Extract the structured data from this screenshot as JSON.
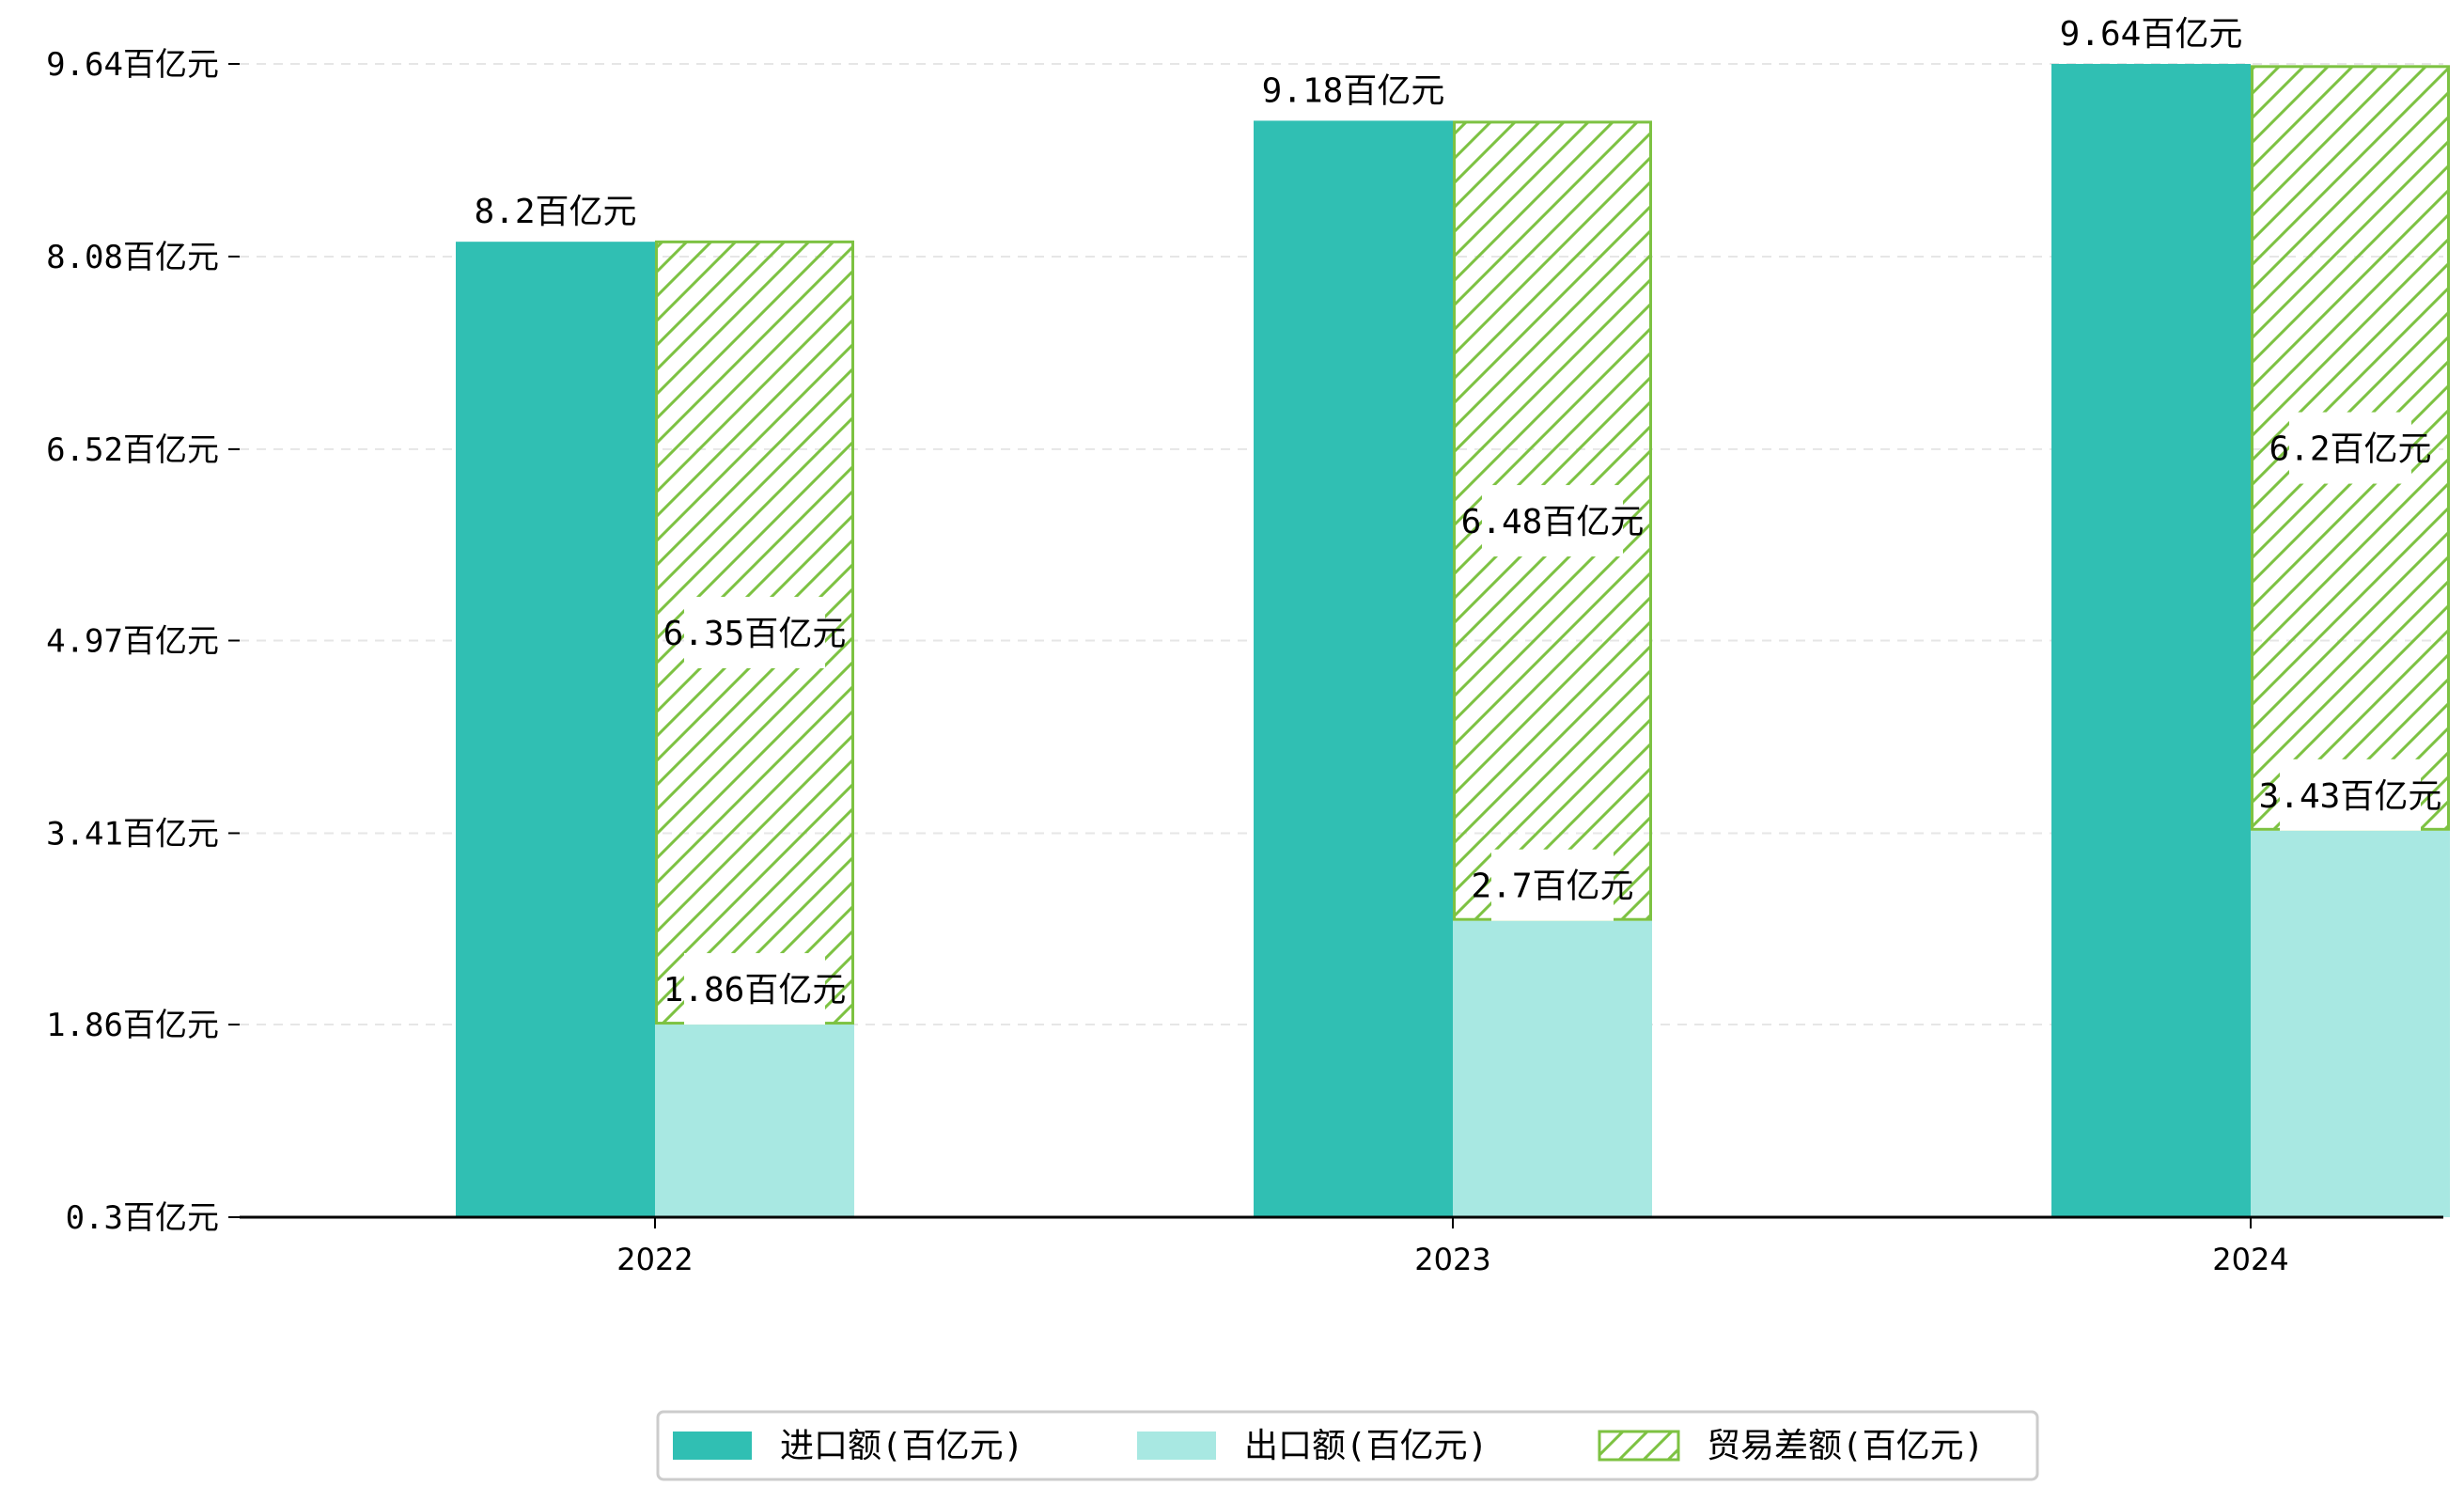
{
  "chart_data": {
    "type": "bar",
    "categories": [
      "2022",
      "2023",
      "2024"
    ],
    "series": [
      {
        "name": "进口额(百亿元)",
        "values": [
          8.2,
          9.18,
          9.64
        ],
        "color": "#30bfb3",
        "labels": [
          "8.2百亿元",
          "9.18百亿元",
          "9.64百亿元"
        ]
      },
      {
        "name": "出口额(百亿元)",
        "values": [
          1.86,
          2.7,
          3.43
        ],
        "color": "#a8e8e2",
        "labels": [
          "1.86百亿元",
          "2.7百亿元",
          "3.43百亿元"
        ]
      },
      {
        "name": "贸易差额(百亿元)",
        "values": [
          6.35,
          6.48,
          6.2
        ],
        "color": "#7dc242",
        "pattern": "hatch",
        "stacked_on": "出口额(百亿元)",
        "labels": [
          "6.35百亿元",
          "6.48百亿元",
          "6.2百亿元"
        ]
      }
    ],
    "y_ticks": [
      0.3,
      1.86,
      3.41,
      4.97,
      6.52,
      8.08,
      9.64
    ],
    "y_tick_labels": [
      "0.3百亿元",
      "1.86百亿元",
      "3.41百亿元",
      "4.97百亿元",
      "6.52百亿元",
      "8.08百亿元",
      "9.64百亿元"
    ],
    "ylim": [
      0.3,
      9.64
    ],
    "grid": "horizontal dashed",
    "legend": "bottom-center",
    "title": "",
    "xlabel": "",
    "ylabel": ""
  }
}
